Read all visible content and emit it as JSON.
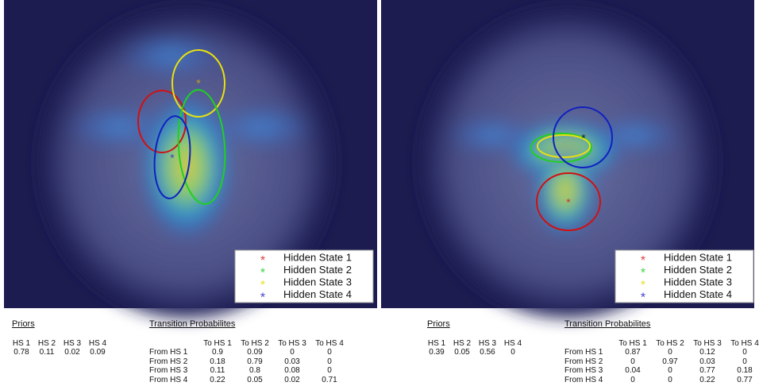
{
  "panels": [
    {
      "legend": [
        "Hidden State 1",
        "Hidden State 2",
        "Hidden State 3",
        "Hidden State 4"
      ],
      "priors": {
        "title": "Priors",
        "headers": [
          "HS 1",
          "HS 2",
          "HS 3",
          "HS 4"
        ],
        "values": [
          0.78,
          0.11,
          0.02,
          0.09
        ]
      },
      "transition": {
        "title": "Transition Probabilites",
        "col_headers": [
          "To HS 1",
          "To HS 2",
          "To HS 3",
          "To HS 4"
        ],
        "rows": [
          {
            "label": "From HS 1",
            "values": [
              0.9,
              0.09,
              0,
              0
            ]
          },
          {
            "label": "From HS 2",
            "values": [
              0.18,
              0.79,
              0.03,
              0
            ]
          },
          {
            "label": "From HS 3",
            "values": [
              0.11,
              0.8,
              0.08,
              0
            ]
          },
          {
            "label": "From HS 4",
            "values": [
              0.22,
              0.05,
              0.02,
              0.71
            ]
          }
        ]
      }
    },
    {
      "legend": [
        "Hidden State 1",
        "Hidden State 2",
        "Hidden State 3",
        "Hidden State 4"
      ],
      "priors": {
        "title": "Priors",
        "headers": [
          "HS 1",
          "HS 2",
          "HS 3",
          "HS 4"
        ],
        "values": [
          0.39,
          0.05,
          0.56,
          0
        ]
      },
      "transition": {
        "title": "Transition Probabilites",
        "col_headers": [
          "To HS 1",
          "To HS 2",
          "To HS 3",
          "To HS 4"
        ],
        "rows": [
          {
            "label": "From HS 1",
            "values": [
              0.87,
              0,
              0.12,
              0
            ]
          },
          {
            "label": "From HS 2",
            "values": [
              0,
              0.97,
              0.03,
              0
            ]
          },
          {
            "label": "From HS 3",
            "values": [
              0.04,
              0,
              0.77,
              0.18
            ]
          },
          {
            "label": "From HS 4",
            "values": [
              0,
              0,
              0.22,
              0.77
            ]
          }
        ]
      }
    }
  ]
}
